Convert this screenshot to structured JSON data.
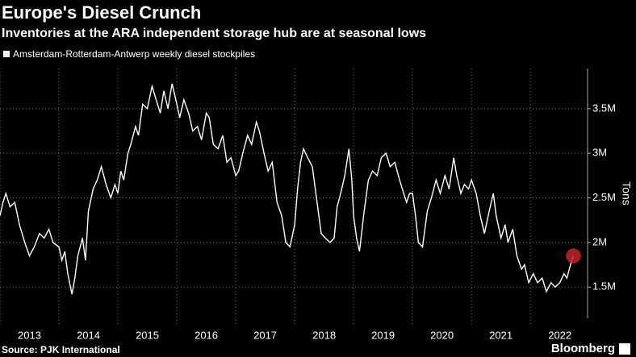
{
  "chart_data": {
    "type": "line",
    "title": "Europe's Diesel Crunch",
    "subtitle": "Inventories at the ARA independent storage hub are at seasonal lows",
    "ylabel": "Tons",
    "source": "Source: PJK International",
    "brand": "Bloomberg",
    "x": [
      2013.0,
      2013.05,
      2013.1,
      2013.17,
      2013.25,
      2013.33,
      2013.42,
      2013.5,
      2013.58,
      2013.67,
      2013.75,
      2013.83,
      2013.9,
      2014.0,
      2014.05,
      2014.1,
      2014.15,
      2014.22,
      2014.27,
      2014.32,
      2014.4,
      2014.45,
      2014.5,
      2014.58,
      2014.65,
      2014.72,
      2014.8,
      2014.88,
      2014.95,
      2015.0,
      2015.05,
      2015.1,
      2015.17,
      2015.22,
      2015.3,
      2015.35,
      2015.42,
      2015.5,
      2015.58,
      2015.65,
      2015.72,
      2015.78,
      2015.85,
      2015.92,
      2016.0,
      2016.05,
      2016.12,
      2016.2,
      2016.27,
      2016.35,
      2016.42,
      2016.5,
      2016.55,
      2016.62,
      2016.7,
      2016.78,
      2016.85,
      2016.92,
      2017.0,
      2017.05,
      2017.12,
      2017.2,
      2017.27,
      2017.35,
      2017.4,
      2017.48,
      2017.55,
      2017.62,
      2017.7,
      2017.78,
      2017.85,
      2017.92,
      2018.0,
      2018.05,
      2018.1,
      2018.15,
      2018.22,
      2018.3,
      2018.37,
      2018.45,
      2018.52,
      2018.6,
      2018.67,
      2018.72,
      2018.78,
      2018.85,
      2018.92,
      2018.97,
      2019.0,
      2019.05,
      2019.1,
      2019.17,
      2019.25,
      2019.32,
      2019.4,
      2019.47,
      2019.55,
      2019.62,
      2019.7,
      2019.78,
      2019.85,
      2019.9,
      2019.95,
      2020.0,
      2020.05,
      2020.1,
      2020.17,
      2020.25,
      2020.32,
      2020.4,
      2020.47,
      2020.55,
      2020.62,
      2020.7,
      2020.75,
      2020.82,
      2020.88,
      2020.95,
      2021.0,
      2021.08,
      2021.15,
      2021.22,
      2021.3,
      2021.37,
      2021.42,
      2021.5,
      2021.57,
      2021.62,
      2021.7,
      2021.77,
      2021.85,
      2021.9,
      2021.97,
      2022.05,
      2022.12,
      2022.2,
      2022.27,
      2022.35,
      2022.42,
      2022.5,
      2022.57,
      2022.62,
      2022.68,
      2022.73
    ],
    "series": [
      {
        "name": "Amsterdam-Rotterdam-Antwerp weekly diesel stockpiles",
        "color": "#ffffff",
        "values": [
          2300000,
          2450000,
          2550000,
          2400000,
          2450000,
          2200000,
          2000000,
          1850000,
          1950000,
          2100000,
          2050000,
          2150000,
          2000000,
          1950000,
          1800000,
          1900000,
          1650000,
          1420000,
          1600000,
          1850000,
          2050000,
          1800000,
          2350000,
          2600000,
          2700000,
          2850000,
          2650000,
          2500000,
          2650000,
          2550000,
          2800000,
          2700000,
          3000000,
          3100000,
          3300000,
          3200000,
          3550000,
          3500000,
          3750000,
          3600000,
          3450000,
          3700000,
          3500000,
          3780000,
          3550000,
          3400000,
          3600000,
          3450000,
          3250000,
          3300000,
          3150000,
          3450000,
          3400000,
          3100000,
          3050000,
          3200000,
          2900000,
          2950000,
          2750000,
          2800000,
          3000000,
          3200000,
          3100000,
          3350000,
          3250000,
          3000000,
          2800000,
          2900000,
          2450000,
          2300000,
          2000000,
          1950000,
          2200000,
          2600000,
          2900000,
          3050000,
          2950000,
          2850000,
          2500000,
          2100000,
          2050000,
          2000000,
          2050000,
          2400000,
          2550000,
          2750000,
          3050000,
          2700000,
          2300000,
          2050000,
          1900000,
          2300000,
          2700000,
          2800000,
          2750000,
          2950000,
          3000000,
          2850000,
          2900000,
          2700000,
          2550000,
          2450000,
          2550000,
          2550000,
          2300000,
          2000000,
          1950000,
          2350000,
          2500000,
          2700000,
          2550000,
          2750000,
          2600000,
          2950000,
          2750000,
          2550000,
          2650000,
          2600000,
          2700000,
          2550000,
          2300000,
          2100000,
          2350000,
          2550000,
          2300000,
          2050000,
          2200000,
          2000000,
          2150000,
          1850000,
          1700000,
          1750000,
          1550000,
          1650000,
          1550000,
          1600000,
          1450000,
          1550000,
          1500000,
          1550000,
          1650000,
          1600000,
          1750000,
          1850000
        ]
      }
    ],
    "highlight_color": "#c0232c",
    "xlim": [
      2013,
      2022.97
    ],
    "xticks": [
      2013,
      2014,
      2015,
      2016,
      2017,
      2018,
      2019,
      2020,
      2021,
      2022
    ],
    "ylim": [
      1150000,
      3950000
    ],
    "yticks": [
      {
        "value": 1500000,
        "label": "1.5M"
      },
      {
        "value": 2000000,
        "label": "2M"
      },
      {
        "value": 2500000,
        "label": "2.5M"
      },
      {
        "value": 3000000,
        "label": "3M"
      },
      {
        "value": 3500000,
        "label": "3.5M"
      }
    ],
    "grid": true
  }
}
